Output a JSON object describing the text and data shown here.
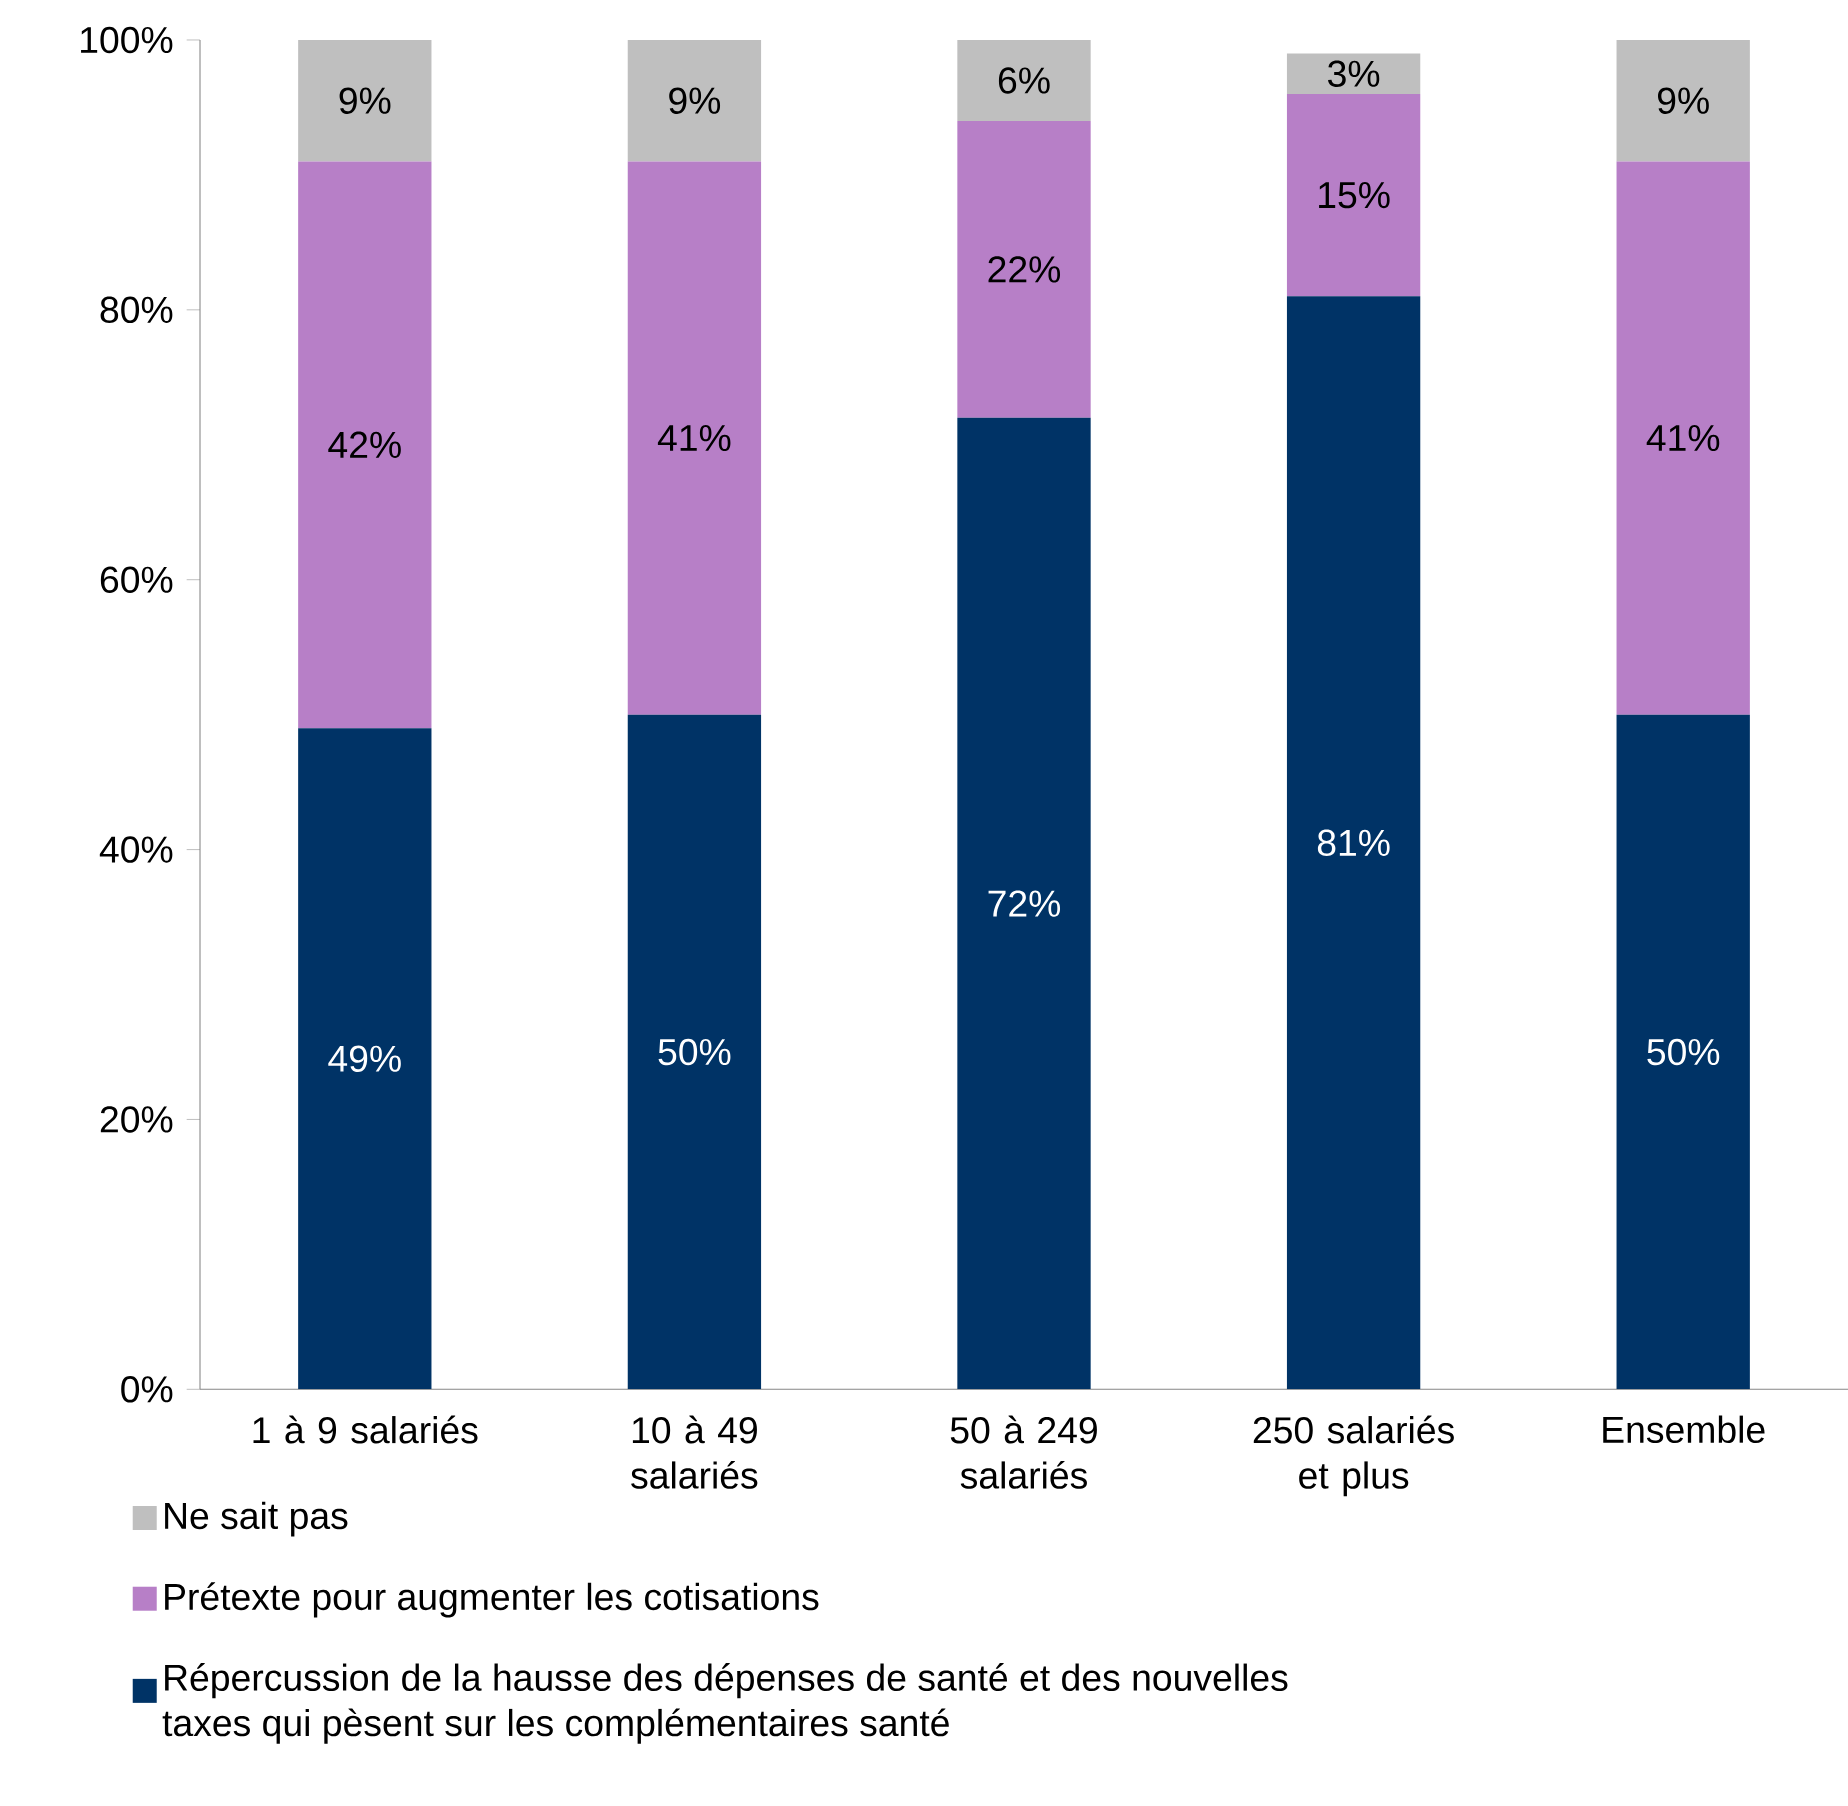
{
  "chart_data": {
    "type": "bar",
    "stacked": true,
    "categories": [
      "1 à 9 salariés",
      "10 à 49 salariés",
      "50 à 249 salariés",
      "250 salariés et plus",
      "Ensemble"
    ],
    "series": [
      {
        "name": "Répercussion de la hausse des dépenses de santé et des nouvelles taxes qui pèsent sur les complémentaires santé",
        "color": "#003366",
        "values": [
          49,
          50,
          72,
          81,
          50
        ],
        "value_labels": [
          "49%",
          "50%",
          "72%",
          "81%",
          "50%"
        ]
      },
      {
        "name": "Prétexte pour augmenter les cotisations",
        "color": "#b77fc7",
        "values": [
          42,
          41,
          22,
          15,
          41
        ],
        "value_labels": [
          "42%",
          "41%",
          "22%",
          "15%",
          "41%"
        ]
      },
      {
        "name": "Ne sait pas",
        "color": "#bfbfbf",
        "values": [
          9,
          9,
          6,
          3,
          9
        ],
        "value_labels": [
          "9%",
          "9%",
          "6%",
          "3%",
          "9%"
        ]
      }
    ],
    "ylim": [
      0,
      100
    ],
    "yticks": [
      {
        "value": 0,
        "label": "0%"
      },
      {
        "value": 20,
        "label": "20%"
      },
      {
        "value": 40,
        "label": "40%"
      },
      {
        "value": 60,
        "label": "60%"
      },
      {
        "value": 80,
        "label": "80%"
      },
      {
        "value": 100,
        "label": "100%"
      }
    ],
    "legend": "bottom left",
    "grid": false
  }
}
